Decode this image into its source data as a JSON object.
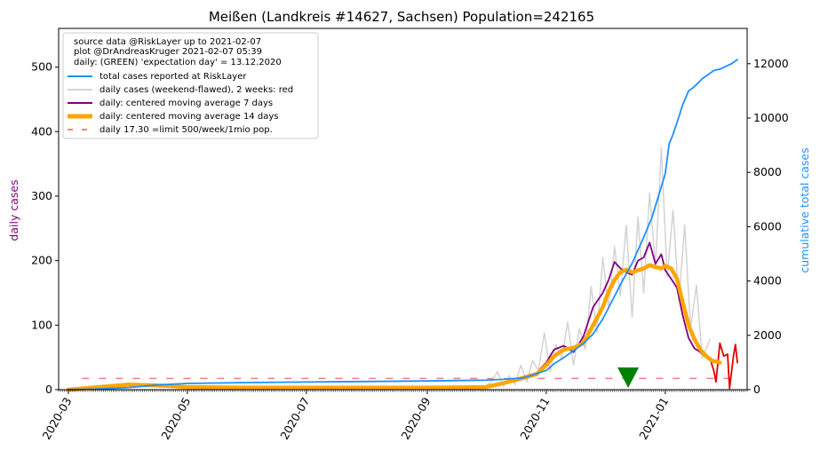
{
  "chart_data": {
    "type": "line",
    "title": "Meißen (Landkreis #14627, Sachsen) Population=242165",
    "ylabel_left": "daily cases",
    "ylabel_right": "cumulative total cases",
    "ylim_left": [
      0,
      560
    ],
    "ylim_right": [
      0,
      13300
    ],
    "xlim": [
      "2020-02-25",
      "2021-02-12"
    ],
    "left_ticks": [
      0,
      100,
      200,
      300,
      400,
      500
    ],
    "right_ticks": [
      0,
      2000,
      4000,
      6000,
      8000,
      10000,
      12000
    ],
    "x_ticks": [
      "2020-03",
      "2020-05",
      "2020-07",
      "2020-09",
      "2020-11",
      "2021-01"
    ],
    "legend_position": "top-left",
    "legend_info": [
      "source data @RiskLayer up to 2021-02-07",
      "plot @DrAndreasKruger 2021-02-07 05:39",
      "daily: (GREEN) 'expectation day' = 13.12.2020"
    ],
    "expectation_day": "2020-12-13",
    "limit_value": 17.3,
    "colors": {
      "total": "#1e90ff",
      "daily": "#d3d3d3",
      "recent": "#e00000",
      "ma7": "#800080",
      "ma14": "#ffa500",
      "limit": "#f08080",
      "marker": "#008000",
      "left_label": "#800080",
      "right_label": "#1e90ff"
    },
    "series": [
      {
        "name": "total cases reported at RiskLayer",
        "axis": "right",
        "x": [
          "2020-03-01",
          "2020-03-15",
          "2020-04-01",
          "2020-04-15",
          "2020-05-01",
          "2020-06-01",
          "2020-07-01",
          "2020-08-01",
          "2020-09-01",
          "2020-10-01",
          "2020-10-10",
          "2020-10-20",
          "2020-10-25",
          "2020-11-01",
          "2020-11-05",
          "2020-11-10",
          "2020-11-15",
          "2020-11-20",
          "2020-11-25",
          "2020-11-30",
          "2020-12-05",
          "2020-12-10",
          "2020-12-15",
          "2020-12-20",
          "2020-12-25",
          "2020-12-28",
          "2021-01-01",
          "2021-01-03",
          "2021-01-05",
          "2021-01-08",
          "2021-01-10",
          "2021-01-13",
          "2021-01-15",
          "2021-01-18",
          "2021-01-20",
          "2021-01-23",
          "2021-01-26",
          "2021-01-29",
          "2021-02-01",
          "2021-02-04",
          "2021-02-07"
        ],
        "values": [
          0,
          20,
          80,
          170,
          230,
          260,
          280,
          300,
          320,
          350,
          380,
          430,
          540,
          710,
          950,
          1180,
          1430,
          1700,
          2050,
          2600,
          3300,
          4000,
          4650,
          5450,
          6300,
          7000,
          7950,
          9050,
          9400,
          10050,
          10500,
          11000,
          11100,
          11300,
          11450,
          11600,
          11750,
          11800,
          11900,
          12000,
          12150
        ]
      },
      {
        "name": "daily cases (weekend-flawed), 2 weeks: red",
        "axis": "left",
        "x": [
          "2020-03-01",
          "2020-04-01",
          "2020-05-01",
          "2020-06-01",
          "2020-07-01",
          "2020-08-01",
          "2020-09-01",
          "2020-10-01",
          "2020-10-04",
          "2020-10-07",
          "2020-10-10",
          "2020-10-13",
          "2020-10-16",
          "2020-10-19",
          "2020-10-22",
          "2020-10-25",
          "2020-10-28",
          "2020-10-31",
          "2020-11-03",
          "2020-11-06",
          "2020-11-09",
          "2020-11-12",
          "2020-11-15",
          "2020-11-18",
          "2020-11-21",
          "2020-11-24",
          "2020-11-27",
          "2020-11-30",
          "2020-12-03",
          "2020-12-06",
          "2020-12-09",
          "2020-12-12",
          "2020-12-15",
          "2020-12-18",
          "2020-12-21",
          "2020-12-24",
          "2020-12-27",
          "2020-12-30",
          "2021-01-02",
          "2021-01-05",
          "2021-01-08",
          "2021-01-11",
          "2021-01-14",
          "2021-01-17",
          "2021-01-20",
          "2021-01-24"
        ],
        "values": [
          0,
          8,
          3,
          2,
          1,
          1,
          2,
          6,
          12,
          28,
          5,
          22,
          8,
          38,
          12,
          45,
          30,
          88,
          28,
          70,
          48,
          105,
          38,
          95,
          62,
          160,
          88,
          205,
          125,
          222,
          145,
          255,
          112,
          268,
          150,
          305,
          190,
          375,
          175,
          278,
          138,
          255,
          95,
          162,
          48,
          78
        ]
      },
      {
        "name": "daily (last 2 weeks)",
        "axis": "left",
        "x": [
          "2021-01-24",
          "2021-01-26",
          "2021-01-27",
          "2021-01-29",
          "2021-01-31",
          "2021-02-02",
          "2021-02-03",
          "2021-02-05",
          "2021-02-06",
          "2021-02-07"
        ],
        "values": [
          48,
          28,
          12,
          72,
          52,
          55,
          2,
          52,
          70,
          42
        ]
      },
      {
        "name": "daily: centered moving average 7 days",
        "axis": "left",
        "x": [
          "2020-03-01",
          "2020-04-01",
          "2020-04-20",
          "2020-05-01",
          "2020-06-01",
          "2020-07-01",
          "2020-08-01",
          "2020-09-01",
          "2020-10-01",
          "2020-10-10",
          "2020-10-20",
          "2020-10-27",
          "2020-11-01",
          "2020-11-05",
          "2020-11-10",
          "2020-11-15",
          "2020-11-20",
          "2020-11-25",
          "2020-11-30",
          "2020-12-03",
          "2020-12-06",
          "2020-12-09",
          "2020-12-12",
          "2020-12-15",
          "2020-12-18",
          "2020-12-21",
          "2020-12-24",
          "2020-12-27",
          "2020-12-30",
          "2021-01-01",
          "2021-01-04",
          "2021-01-07",
          "2021-01-10",
          "2021-01-13",
          "2021-01-16",
          "2021-01-19",
          "2021-01-22",
          "2021-01-25"
        ],
        "values": [
          0,
          7,
          5,
          3,
          2,
          2,
          2,
          3,
          4,
          10,
          20,
          26,
          42,
          62,
          68,
          58,
          82,
          128,
          150,
          170,
          198,
          188,
          182,
          178,
          200,
          205,
          228,
          195,
          210,
          185,
          172,
          158,
          115,
          80,
          64,
          58,
          50,
          45
        ]
      },
      {
        "name": "daily: centered moving average 14 days",
        "axis": "left",
        "x": [
          "2020-03-01",
          "2020-04-01",
          "2020-04-20",
          "2020-05-01",
          "2020-06-01",
          "2020-07-01",
          "2020-08-01",
          "2020-09-01",
          "2020-10-01",
          "2020-10-10",
          "2020-10-20",
          "2020-10-27",
          "2020-11-01",
          "2020-11-05",
          "2020-11-10",
          "2020-11-15",
          "2020-11-20",
          "2020-11-25",
          "2020-11-30",
          "2020-12-03",
          "2020-12-06",
          "2020-12-09",
          "2020-12-12",
          "2020-12-15",
          "2020-12-18",
          "2020-12-21",
          "2020-12-24",
          "2020-12-27",
          "2020-12-30",
          "2021-01-01",
          "2021-01-04",
          "2021-01-07",
          "2021-01-10",
          "2021-01-13",
          "2021-01-16",
          "2021-01-19",
          "2021-01-22",
          "2021-01-25",
          "2021-01-29"
        ],
        "values": [
          0,
          8,
          6,
          4,
          3,
          3,
          3,
          3,
          4,
          10,
          18,
          24,
          38,
          52,
          62,
          65,
          72,
          100,
          128,
          152,
          170,
          182,
          186,
          182,
          185,
          188,
          193,
          190,
          188,
          192,
          188,
          172,
          135,
          100,
          78,
          62,
          52,
          45,
          42
        ]
      },
      {
        "name": "daily 17.30 =limit 500/week/1mio pop.",
        "axis": "left",
        "x": [
          "2020-03-08",
          "2021-02-07"
        ],
        "values": [
          17.3,
          17.3
        ]
      }
    ]
  }
}
